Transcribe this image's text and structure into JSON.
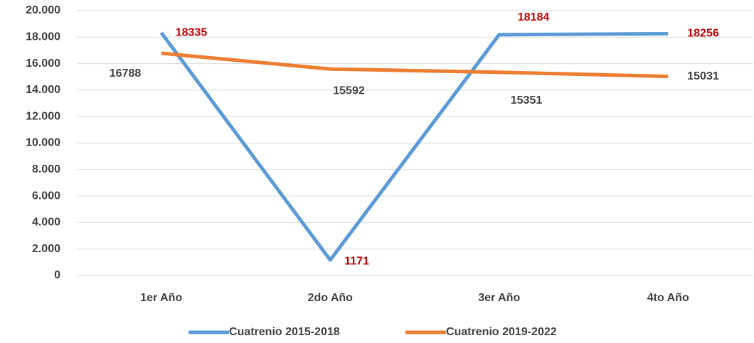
{
  "chart_data": {
    "type": "line",
    "categories": [
      "1er Año",
      "2do Año",
      "3er Año",
      "4to Año"
    ],
    "series": [
      {
        "name": "Cuatrenio 2015-2018",
        "color": "#5b9bd5",
        "label_color": "#c00000",
        "values": [
          18335,
          1171,
          18184,
          18256
        ]
      },
      {
        "name": "Cuatrenio 2019-2022",
        "color": "#ed7d31",
        "label_color": "#404040",
        "values": [
          16788,
          15592,
          15351,
          15031
        ]
      }
    ],
    "ylim": [
      0,
      20000
    ],
    "yticks": [
      0,
      {
        "value": 2000,
        "label": "2.000"
      },
      {
        "value": 4000,
        "label": "4.000"
      },
      {
        "value": 6000,
        "label": "6.000"
      },
      {
        "value": 8000,
        "label": "8.000"
      },
      {
        "value": 10000,
        "label": "10.000"
      },
      {
        "value": 12000,
        "label": "12.000"
      },
      {
        "value": 14000,
        "label": "14.000"
      },
      {
        "value": 16000,
        "label": "16.000"
      },
      {
        "value": 18000,
        "label": "18.000"
      },
      {
        "value": 20000,
        "label": "20.000"
      }
    ],
    "grid": true,
    "legend": "bottom"
  }
}
